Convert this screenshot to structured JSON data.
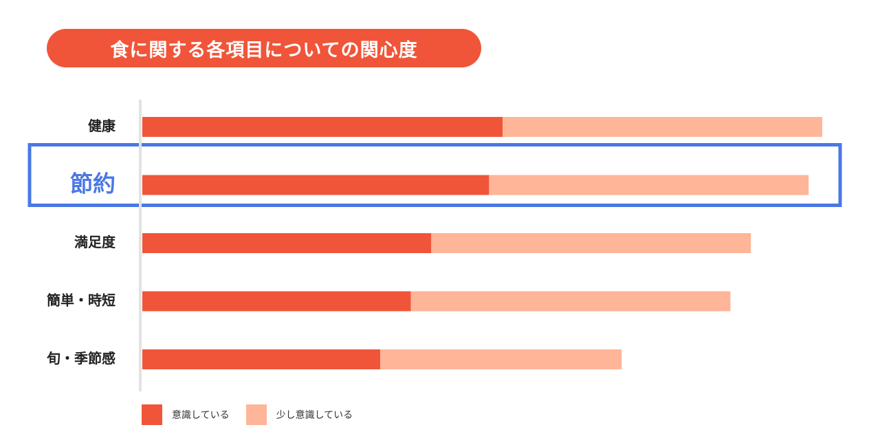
{
  "title": "食に関する各項目についての関心度",
  "chart_data": {
    "type": "bar",
    "orientation": "horizontal",
    "stacked": true,
    "categories": [
      "健康",
      "節約",
      "満足度",
      "簡単・時短",
      "旬・季節感"
    ],
    "highlighted_category": "節約",
    "series": [
      {
        "name": "意識している",
        "values": [
          53,
          51,
          42.5,
          39.5,
          35
        ],
        "color": "#f0553a"
      },
      {
        "name": "少し意識している",
        "values": [
          47,
          47,
          47,
          47,
          35.5
        ],
        "color": "#ffb597"
      }
    ],
    "xlim": [
      0,
      100
    ],
    "grid": false,
    "legend_position": "bottom-left",
    "highlight_color": "#4a78e4"
  },
  "legend": [
    {
      "label": "意識している",
      "color": "#f0553a"
    },
    {
      "label": "少し意識している",
      "color": "#ffb597"
    }
  ]
}
